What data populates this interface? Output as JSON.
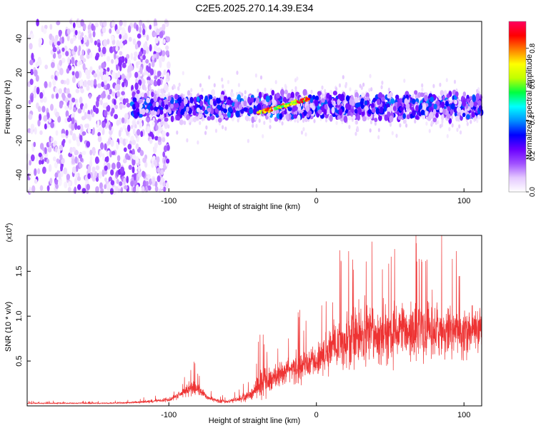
{
  "title": "C2E5.2025.270.14.39.E34",
  "chart_data": [
    {
      "type": "heatmap",
      "name": "spectrogram",
      "xlabel": "Height of straight line (km)",
      "ylabel": "Frequency (Hz)",
      "xlim": [
        -196,
        112
      ],
      "ylim": [
        -50,
        50
      ],
      "xticks": [
        -100,
        0,
        100
      ],
      "yticks": [
        -40,
        -20,
        0,
        20,
        40
      ],
      "colorbar": {
        "label": "Normalized spectral amplitude",
        "range": [
          0.0,
          0.95
        ],
        "ticks": [
          0.0,
          0.2,
          0.4,
          0.6,
          0.8
        ],
        "colors": [
          "#ffffff",
          "#e4c8ff",
          "#a050ff",
          "#6a00ff",
          "#0000ff",
          "#0090ff",
          "#00ffff",
          "#00ff40",
          "#c0ff00",
          "#ffff00",
          "#ff8000",
          "#ff0000",
          "#ff0060"
        ]
      },
      "regions": [
        {
          "x_range": [
            -196,
            -110
          ],
          "freq_range": [
            -50,
            50
          ],
          "amplitude_range": [
            0.02,
            0.2
          ],
          "description": "broadband scattered noise"
        },
        {
          "x_range": [
            -125,
            112
          ],
          "freq_center": 0,
          "freq_halfwidth": 10,
          "amplitude_range": [
            0.05,
            0.4
          ]
        },
        {
          "x_range": [
            -40,
            -5
          ],
          "freq_center": -4,
          "freq_slope_hz_per_km": 0.25,
          "amplitude_range": [
            0.5,
            0.95
          ],
          "description": "strong signal ridge"
        }
      ]
    },
    {
      "type": "line",
      "name": "snr",
      "xlabel": "Height of straight line (km)",
      "ylabel": "SNR (10 * v/v)",
      "y_multiplier_label": "(x10",
      "y_multiplier_exp": "4",
      "y_multiplier_close": ")",
      "xlim": [
        -196,
        112
      ],
      "ylim": [
        0,
        1.9
      ],
      "xticks": [
        -100,
        0,
        100
      ],
      "yticks": [
        0.5,
        1.0,
        1.5
      ],
      "ytick_labels": [
        "0.5",
        "1.0",
        "1.5"
      ],
      "color": "#ee3333",
      "envelope": {
        "x": [
          -196,
          -140,
          -120,
          -100,
          -92,
          -86,
          -82,
          -78,
          -74,
          -66,
          -60,
          -52,
          -44,
          -40,
          -36,
          -30,
          -26,
          -20,
          -14,
          -8,
          -2,
          2,
          6,
          12,
          20,
          28,
          36,
          50,
          60,
          70,
          80,
          90,
          100,
          106,
          112
        ],
        "mean": [
          0.03,
          0.03,
          0.04,
          0.07,
          0.13,
          0.19,
          0.2,
          0.15,
          0.1,
          0.05,
          0.05,
          0.08,
          0.13,
          0.22,
          0.26,
          0.3,
          0.35,
          0.4,
          0.42,
          0.45,
          0.47,
          0.52,
          0.58,
          0.68,
          0.74,
          0.78,
          0.8,
          0.82,
          0.82,
          0.83,
          0.84,
          0.82,
          0.82,
          0.84,
          0.86
        ],
        "spread": [
          0.01,
          0.01,
          0.02,
          0.03,
          0.06,
          0.1,
          0.12,
          0.08,
          0.05,
          0.03,
          0.03,
          0.05,
          0.1,
          0.2,
          0.25,
          0.2,
          0.2,
          0.22,
          0.25,
          0.25,
          0.22,
          0.25,
          0.3,
          0.35,
          0.45,
          0.55,
          0.5,
          0.45,
          0.45,
          0.45,
          0.48,
          0.45,
          0.42,
          0.4,
          0.4
        ]
      }
    }
  ]
}
